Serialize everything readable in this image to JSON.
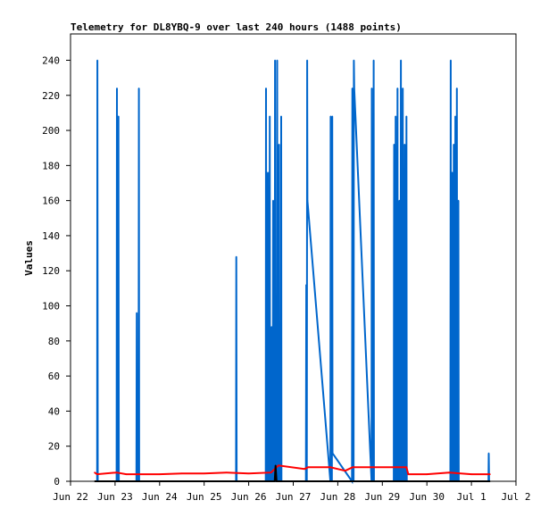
{
  "chart_data": {
    "type": "line",
    "title": "Telemetry for DL8YBQ-9 over last 240 hours (1488 points)",
    "xlabel": "",
    "ylabel": "Values",
    "ylim": [
      0,
      255
    ],
    "xlim": [
      "2024-06-22T00:00",
      "2024-07-02T00:00"
    ],
    "y_ticks": [
      0,
      20,
      40,
      60,
      80,
      100,
      120,
      140,
      160,
      180,
      200,
      220,
      240
    ],
    "x_ticks": [
      {
        "label": "Jun 22",
        "t": "2024-06-22T00:00"
      },
      {
        "label": "Jun 23",
        "t": "2024-06-23T00:00"
      },
      {
        "label": "Jun 24",
        "t": "2024-06-24T00:00"
      },
      {
        "label": "Jun 25",
        "t": "2024-06-25T00:00"
      },
      {
        "label": "Jun 26",
        "t": "2024-06-26T00:00"
      },
      {
        "label": "Jun 27",
        "t": "2024-06-27T00:00"
      },
      {
        "label": "Jun 28",
        "t": "2024-06-28T00:00"
      },
      {
        "label": "Jun 29",
        "t": "2024-06-29T00:00"
      },
      {
        "label": "Jun 30",
        "t": "2024-06-30T00:00"
      },
      {
        "label": "Jul 1",
        "t": "2024-07-01T00:00"
      },
      {
        "label": "Jul 2",
        "t": "2024-07-02T00:00"
      }
    ],
    "grid": false,
    "legend": "none",
    "series": [
      {
        "color": "#0066cc",
        "points": [
          [
            "2024-06-22T14:20",
            0
          ],
          [
            "2024-06-22T14:30",
            240
          ],
          [
            "2024-06-22T14:40",
            0
          ],
          [
            "2024-06-23T00:50",
            0
          ],
          [
            "2024-06-23T01:00",
            224
          ],
          [
            "2024-06-23T01:10",
            0
          ],
          [
            "2024-06-23T01:40",
            0
          ],
          [
            "2024-06-23T01:50",
            208
          ],
          [
            "2024-06-23T02:00",
            0
          ],
          [
            "2024-06-23T11:30",
            0
          ],
          [
            "2024-06-23T11:40",
            96
          ],
          [
            "2024-06-23T11:50",
            0
          ],
          [
            "2024-06-23T12:40",
            0
          ],
          [
            "2024-06-23T12:50",
            224
          ],
          [
            "2024-06-23T13:00",
            0
          ],
          [
            "2024-06-25T17:10",
            0
          ],
          [
            "2024-06-25T17:20",
            128
          ],
          [
            "2024-06-25T17:30",
            0
          ],
          [
            "2024-06-26T09:10",
            0
          ],
          [
            "2024-06-26T09:20",
            224
          ],
          [
            "2024-06-26T09:30",
            0
          ],
          [
            "2024-06-26T10:10",
            0
          ],
          [
            "2024-06-26T10:20",
            176
          ],
          [
            "2024-06-26T10:30",
            0
          ],
          [
            "2024-06-26T11:10",
            0
          ],
          [
            "2024-06-26T11:20",
            208
          ],
          [
            "2024-06-26T11:30",
            0
          ],
          [
            "2024-06-26T12:10",
            0
          ],
          [
            "2024-06-26T12:20",
            88
          ],
          [
            "2024-06-26T12:30",
            0
          ],
          [
            "2024-06-26T13:00",
            0
          ],
          [
            "2024-06-26T13:10",
            160
          ],
          [
            "2024-06-26T13:20",
            0
          ],
          [
            "2024-06-26T14:00",
            0
          ],
          [
            "2024-06-26T14:10",
            240
          ],
          [
            "2024-06-26T14:20",
            0
          ],
          [
            "2024-06-26T15:10",
            0
          ],
          [
            "2024-06-26T15:20",
            240
          ],
          [
            "2024-06-26T15:30",
            0
          ],
          [
            "2024-06-26T16:10",
            0
          ],
          [
            "2024-06-26T16:20",
            192
          ],
          [
            "2024-06-26T16:30",
            0
          ],
          [
            "2024-06-26T17:20",
            0
          ],
          [
            "2024-06-26T17:30",
            208
          ],
          [
            "2024-06-26T17:40",
            0
          ],
          [
            "2024-06-27T06:50",
            0
          ],
          [
            "2024-06-27T07:00",
            112
          ],
          [
            "2024-06-27T07:10",
            0
          ],
          [
            "2024-06-27T07:20",
            0
          ],
          [
            "2024-06-27T07:30",
            240
          ],
          [
            "2024-06-27T07:40",
            160
          ],
          [
            "2024-06-27T20:00",
            0
          ],
          [
            "2024-06-27T20:10",
            208
          ],
          [
            "2024-06-27T20:20",
            0
          ],
          [
            "2024-06-27T20:50",
            0
          ],
          [
            "2024-06-27T21:00",
            208
          ],
          [
            "2024-06-27T21:10",
            16
          ],
          [
            "2024-06-28T07:40",
            0
          ],
          [
            "2024-06-28T07:50",
            224
          ],
          [
            "2024-06-28T08:00",
            0
          ],
          [
            "2024-06-28T08:30",
            0
          ],
          [
            "2024-06-28T08:40",
            240
          ],
          [
            "2024-06-28T08:50",
            224
          ],
          [
            "2024-06-28T18:10",
            0
          ],
          [
            "2024-06-28T18:20",
            224
          ],
          [
            "2024-06-28T18:30",
            0
          ],
          [
            "2024-06-28T19:10",
            0
          ],
          [
            "2024-06-28T19:20",
            240
          ],
          [
            "2024-06-28T19:30",
            0
          ],
          [
            "2024-06-29T06:10",
            0
          ],
          [
            "2024-06-29T06:20",
            192
          ],
          [
            "2024-06-29T06:30",
            0
          ],
          [
            "2024-06-29T07:00",
            0
          ],
          [
            "2024-06-29T07:10",
            208
          ],
          [
            "2024-06-29T07:20",
            0
          ],
          [
            "2024-06-29T08:00",
            0
          ],
          [
            "2024-06-29T08:10",
            224
          ],
          [
            "2024-06-29T08:20",
            0
          ],
          [
            "2024-06-29T09:00",
            0
          ],
          [
            "2024-06-29T09:10",
            160
          ],
          [
            "2024-06-29T09:20",
            0
          ],
          [
            "2024-06-29T09:50",
            0
          ],
          [
            "2024-06-29T10:00",
            240
          ],
          [
            "2024-06-29T10:10",
            0
          ],
          [
            "2024-06-29T10:50",
            0
          ],
          [
            "2024-06-29T11:00",
            224
          ],
          [
            "2024-06-29T11:10",
            0
          ],
          [
            "2024-06-29T11:50",
            0
          ],
          [
            "2024-06-29T12:00",
            192
          ],
          [
            "2024-06-29T12:10",
            0
          ],
          [
            "2024-06-29T12:50",
            0
          ],
          [
            "2024-06-29T13:00",
            208
          ],
          [
            "2024-06-29T13:10",
            0
          ],
          [
            "2024-06-30T12:40",
            0
          ],
          [
            "2024-06-30T12:50",
            240
          ],
          [
            "2024-06-30T13:00",
            0
          ],
          [
            "2024-06-30T13:30",
            0
          ],
          [
            "2024-06-30T13:40",
            176
          ],
          [
            "2024-06-30T13:50",
            0
          ],
          [
            "2024-06-30T14:20",
            0
          ],
          [
            "2024-06-30T14:30",
            192
          ],
          [
            "2024-06-30T14:40",
            0
          ],
          [
            "2024-06-30T15:10",
            0
          ],
          [
            "2024-06-30T15:20",
            208
          ],
          [
            "2024-06-30T15:30",
            0
          ],
          [
            "2024-06-30T16:00",
            0
          ],
          [
            "2024-06-30T16:10",
            224
          ],
          [
            "2024-06-30T16:20",
            0
          ],
          [
            "2024-06-30T16:50",
            0
          ],
          [
            "2024-06-30T17:00",
            160
          ],
          [
            "2024-06-30T17:10",
            0
          ],
          [
            "2024-07-01T09:10",
            0
          ],
          [
            "2024-07-01T09:20",
            16
          ],
          [
            "2024-07-01T09:30",
            0
          ]
        ]
      },
      {
        "color": "#ff0000",
        "points": [
          [
            "2024-06-22T13:00",
            5
          ],
          [
            "2024-06-22T14:20",
            4
          ],
          [
            "2024-06-23T00:50",
            5
          ],
          [
            "2024-06-23T06:00",
            4
          ],
          [
            "2024-06-24T00:00",
            4
          ],
          [
            "2024-06-24T12:00",
            4.5
          ],
          [
            "2024-06-25T00:00",
            4.5
          ],
          [
            "2024-06-25T12:00",
            5
          ],
          [
            "2024-06-26T00:00",
            4.5
          ],
          [
            "2024-06-26T12:00",
            5
          ],
          [
            "2024-06-26T16:00",
            9
          ],
          [
            "2024-06-27T06:00",
            7
          ],
          [
            "2024-06-27T08:00",
            8
          ],
          [
            "2024-06-27T20:00",
            8
          ],
          [
            "2024-06-28T04:00",
            6
          ],
          [
            "2024-06-28T08:00",
            8
          ],
          [
            "2024-06-29T06:00",
            8
          ],
          [
            "2024-06-29T13:00",
            8
          ],
          [
            "2024-06-29T14:00",
            4
          ],
          [
            "2024-06-30T00:00",
            4
          ],
          [
            "2024-06-30T12:00",
            5
          ],
          [
            "2024-07-01T00:00",
            4
          ],
          [
            "2024-07-01T10:00",
            4
          ]
        ]
      },
      {
        "color": "#000000",
        "points": [
          [
            "2024-06-22T13:00",
            0
          ],
          [
            "2024-06-26T14:00",
            0
          ],
          [
            "2024-06-26T14:30",
            9
          ],
          [
            "2024-06-26T15:00",
            0
          ],
          [
            "2024-07-01T10:00",
            0
          ]
        ]
      }
    ]
  }
}
